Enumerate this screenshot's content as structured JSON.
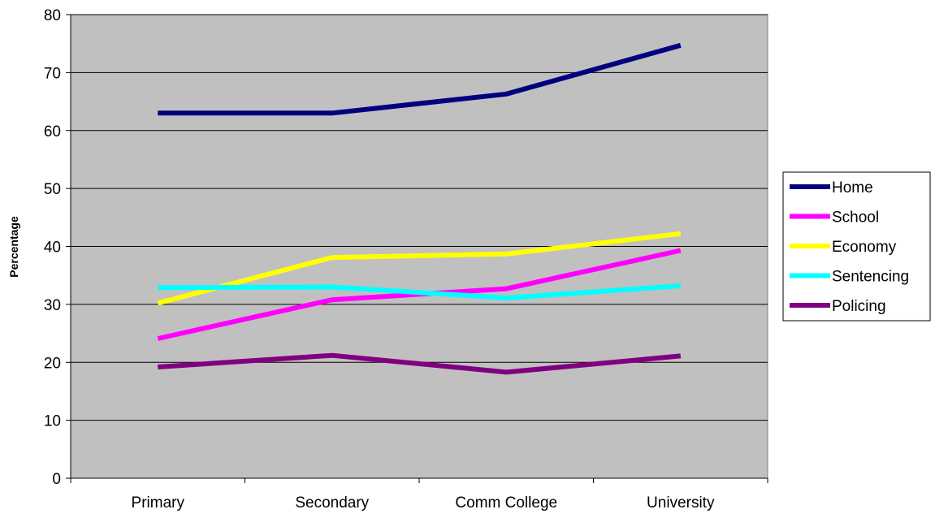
{
  "chart_data": {
    "type": "line",
    "title": "",
    "xlabel": "",
    "ylabel": "Percentage",
    "ylim": [
      0,
      80
    ],
    "yticks": [
      "0",
      "10",
      "20",
      "30",
      "40",
      "50",
      "60",
      "70",
      "80"
    ],
    "categories": [
      "Primary",
      "Secondary",
      "Comm College",
      "University"
    ],
    "grid": "horizontal",
    "legend_position": "right",
    "plot_background": "#C0C0C0",
    "series": [
      {
        "name": "Home",
        "color": "#000080",
        "values": [
          63,
          63,
          66.3,
          74.7
        ]
      },
      {
        "name": "School",
        "color": "#FF00FF",
        "values": [
          24.1,
          30.8,
          32.7,
          39.3
        ]
      },
      {
        "name": "Economy",
        "color": "#FFFF00",
        "values": [
          30.2,
          38.1,
          38.7,
          42.2
        ]
      },
      {
        "name": "Sentencing",
        "color": "#00FFFF",
        "values": [
          32.9,
          33,
          31.1,
          33.2
        ]
      },
      {
        "name": "Policing",
        "color": "#800080",
        "values": [
          19.2,
          21.2,
          18.3,
          21.1
        ]
      }
    ]
  }
}
